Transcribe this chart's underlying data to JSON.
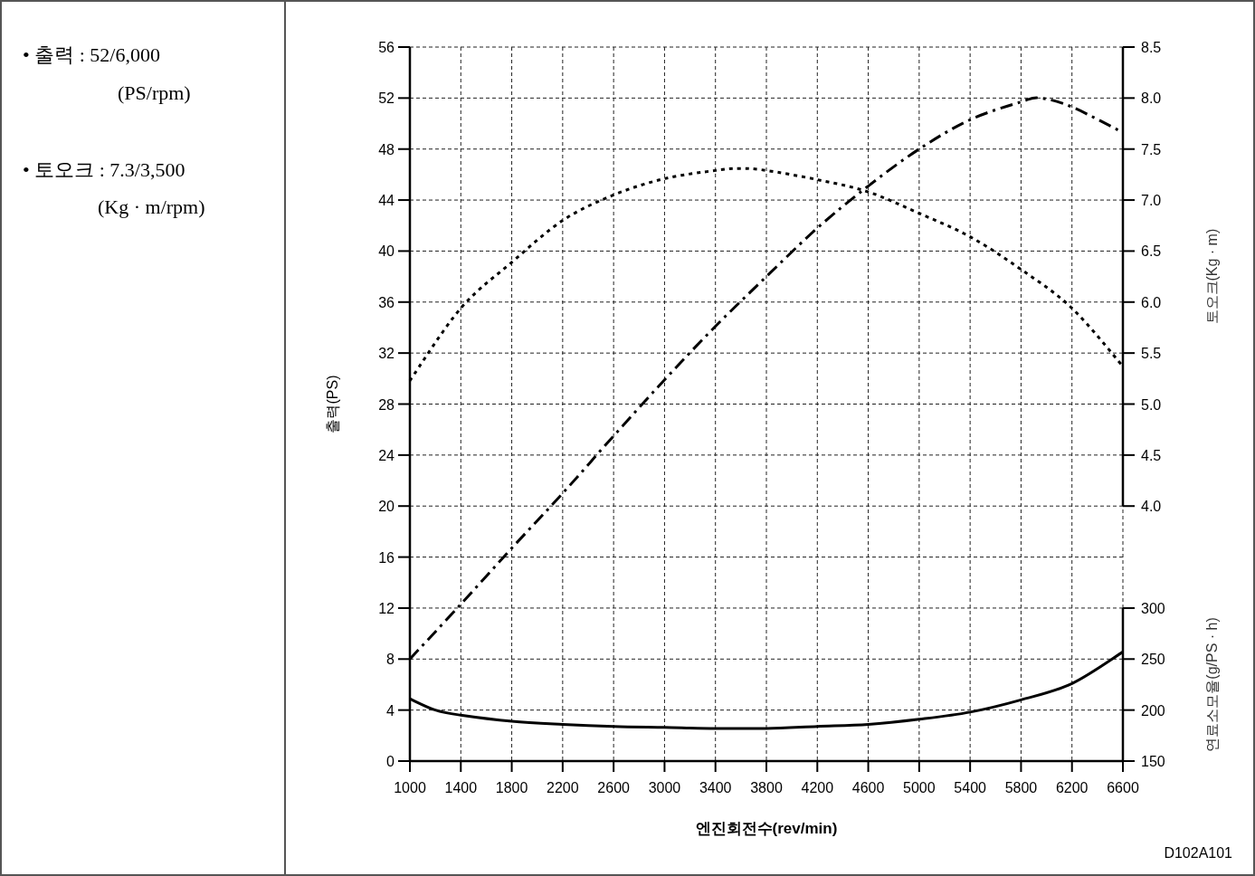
{
  "chart_data": {
    "type": "line",
    "xlabel": "엔진회전수(rev/min)",
    "ylabel": "출력(PS)",
    "y2label": "토오크(Kg · m)",
    "y3label": "연료소모율(g/PS · h)",
    "annotations": [
      "• 출력 : 52/6,000",
      "(PS/rpm)",
      "• 토오크 : 7.3/3,500",
      "(Kg · m/rpm)",
      "D102A101"
    ],
    "xlim": [
      1000,
      6600
    ],
    "xticks": [
      1000,
      1400,
      1800,
      2200,
      2600,
      3000,
      3400,
      3800,
      4200,
      4600,
      5000,
      5400,
      5800,
      6200,
      6600
    ],
    "ylim": [
      0,
      56
    ],
    "yticks": [
      0,
      4,
      8,
      12,
      16,
      20,
      24,
      28,
      32,
      36,
      40,
      44,
      48,
      52,
      56
    ],
    "y2lim": [
      1.5,
      8.5
    ],
    "y2ticks": [
      {
        "value": 4,
        "label": "4.0"
      },
      4.5,
      {
        "value": 5,
        "label": "5.0"
      },
      5.5,
      {
        "value": 6,
        "label": "6.0"
      },
      6.5,
      {
        "value": 7,
        "label": "7.0"
      },
      7.5,
      {
        "value": 8,
        "label": "8.0"
      },
      8.5
    ],
    "y3lim": [
      150,
      850
    ],
    "y3ticks": [
      150,
      200,
      250,
      300
    ],
    "grid": true,
    "marker": "none",
    "series": [
      {
        "color": "#000000",
        "line_style": "dashdot",
        "x": [
          1000,
          1400,
          1800,
          2200,
          2600,
          3000,
          3400,
          3800,
          4200,
          4600,
          5000,
          5400,
          5800,
          5950,
          6200,
          6600
        ],
        "values": [
          8,
          12.3,
          16.7,
          21,
          25.5,
          29.9,
          34.1,
          38,
          41.8,
          45.1,
          48,
          50.3,
          51.7,
          52,
          51.3,
          49.3
        ]
      },
      {
        "color": "#000000",
        "line_style": "dotted",
        "axis": "y2",
        "x": [
          1000,
          1400,
          1800,
          2200,
          2600,
          3000,
          3400,
          3600,
          3800,
          4200,
          4600,
          5000,
          5400,
          5800,
          6200,
          6600
        ],
        "values": [
          5.23,
          5.94,
          6.39,
          6.8,
          7.05,
          7.21,
          7.29,
          7.31,
          7.29,
          7.2,
          7.08,
          6.87,
          6.64,
          6.32,
          5.94,
          5.37
        ]
      },
      {
        "color": "#000000",
        "line_style": "solid",
        "axis": "y3",
        "x": [
          1000,
          1200,
          1400,
          1800,
          2200,
          2600,
          3000,
          3400,
          3800,
          4200,
          4600,
          5000,
          5400,
          5800,
          6200,
          6600
        ],
        "values": [
          211,
          200,
          195,
          189,
          186,
          184,
          183,
          182,
          182,
          184,
          186,
          191,
          198,
          210,
          226,
          257
        ]
      }
    ]
  }
}
